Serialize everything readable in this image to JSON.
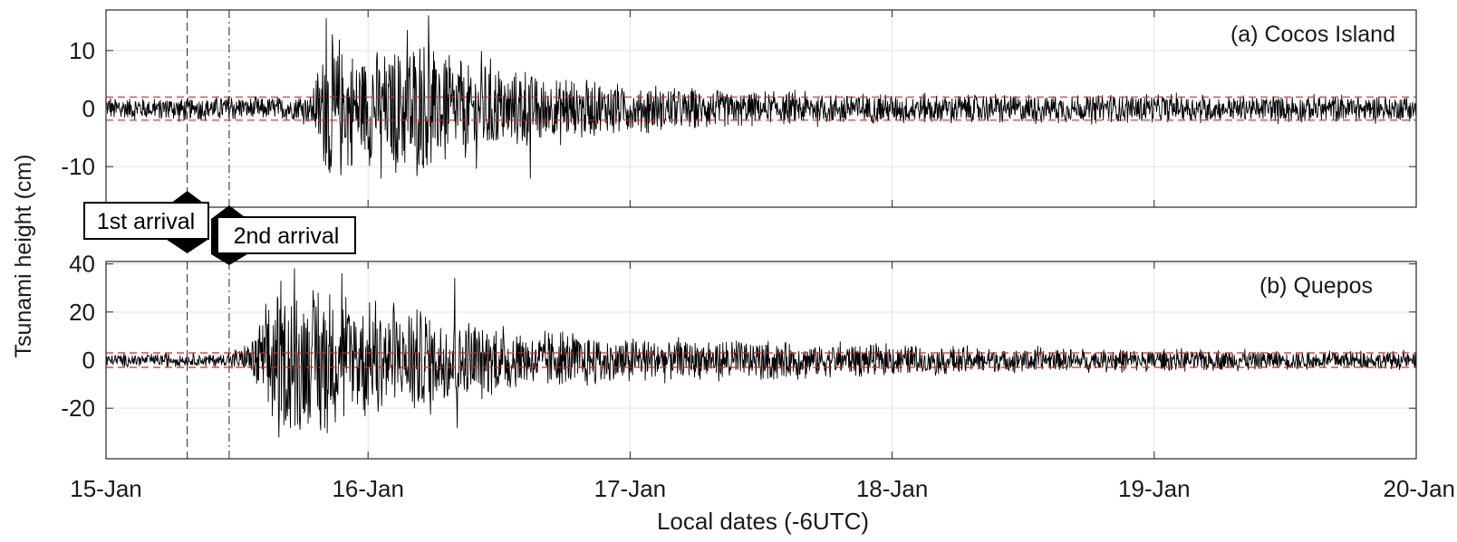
{
  "figure": {
    "ylabel": "Tsunami height (cm)",
    "xlabel": "Local dates (-6UTC)"
  },
  "arrivals": {
    "first_label": "1st arrival",
    "second_label": "2nd arrival",
    "first_day": 15.31,
    "second_day": 15.47
  },
  "chart_data": [
    {
      "type": "line",
      "title": "(a) Cocos Island",
      "xlabel": "Local dates (-6UTC)",
      "ylabel": "Tsunami height (cm)",
      "x_unit": "day of January (local time)",
      "xlim": [
        15,
        20
      ],
      "ylim": [
        -17,
        17
      ],
      "yticks": [
        -10,
        0,
        10
      ],
      "ytick_labels": [
        "-10",
        "0",
        "10"
      ],
      "xticks": [
        15,
        16,
        17,
        18,
        19,
        20
      ],
      "xtick_labels": [
        "15-Jan",
        "16-Jan",
        "17-Jan",
        "18-Jan",
        "19-Jan",
        "20-Jan"
      ],
      "grid": true,
      "threshold_lines": [
        2,
        -2
      ],
      "threshold_color": "#e0201b",
      "series_color": "#000000",
      "envelope": [
        {
          "x": 15.0,
          "amp": 2.2
        },
        {
          "x": 15.7,
          "amp": 2.2
        },
        {
          "x": 15.78,
          "amp": 3.0
        },
        {
          "x": 15.85,
          "amp": 14.0
        },
        {
          "x": 16.0,
          "amp": 11.5
        },
        {
          "x": 16.2,
          "amp": 13.0
        },
        {
          "x": 16.45,
          "amp": 9.0
        },
        {
          "x": 16.7,
          "amp": 6.5
        },
        {
          "x": 17.0,
          "amp": 4.5
        },
        {
          "x": 17.5,
          "amp": 3.2
        },
        {
          "x": 18.0,
          "amp": 2.8
        },
        {
          "x": 20.0,
          "amp": 2.5
        }
      ],
      "peaks": [
        {
          "x": 15.84,
          "y": 15.5
        },
        {
          "x": 15.86,
          "y": -10
        },
        {
          "x": 16.23,
          "y": 16.0
        },
        {
          "x": 16.05,
          "y": -12
        },
        {
          "x": 16.62,
          "y": -12
        },
        {
          "x": 16.15,
          "y": 13.5
        }
      ]
    },
    {
      "type": "line",
      "title": "(b) Quepos",
      "xlabel": "Local dates (-6UTC)",
      "ylabel": "Tsunami height (cm)",
      "x_unit": "day of January (local time)",
      "xlim": [
        15,
        20
      ],
      "ylim": [
        -41,
        41
      ],
      "yticks": [
        -20,
        0,
        20,
        40
      ],
      "ytick_labels": [
        "-20",
        "0",
        "20",
        "40"
      ],
      "xticks": [
        15,
        16,
        17,
        18,
        19,
        20
      ],
      "xtick_labels": [
        "15-Jan",
        "16-Jan",
        "17-Jan",
        "18-Jan",
        "19-Jan",
        "20-Jan"
      ],
      "grid": true,
      "threshold_lines": [
        3,
        -3
      ],
      "threshold_color": "#e0201b",
      "series_color": "#000000",
      "envelope": [
        {
          "x": 15.0,
          "amp": 3.0
        },
        {
          "x": 15.46,
          "amp": 3.0
        },
        {
          "x": 15.55,
          "amp": 8.0
        },
        {
          "x": 15.6,
          "amp": 25.0
        },
        {
          "x": 15.7,
          "amp": 35.0
        },
        {
          "x": 15.95,
          "amp": 30.0
        },
        {
          "x": 16.3,
          "amp": 22.0
        },
        {
          "x": 16.6,
          "amp": 13.0
        },
        {
          "x": 17.0,
          "amp": 10.0
        },
        {
          "x": 17.5,
          "amp": 9.0
        },
        {
          "x": 18.0,
          "amp": 7.0
        },
        {
          "x": 19.0,
          "amp": 5.0
        },
        {
          "x": 20.0,
          "amp": 4.0
        }
      ],
      "peaks": [
        {
          "x": 15.72,
          "y": 38
        },
        {
          "x": 15.66,
          "y": -32
        },
        {
          "x": 15.82,
          "y": -29
        },
        {
          "x": 16.33,
          "y": 34
        },
        {
          "x": 16.34,
          "y": -28
        },
        {
          "x": 15.9,
          "y": 36
        }
      ]
    }
  ]
}
